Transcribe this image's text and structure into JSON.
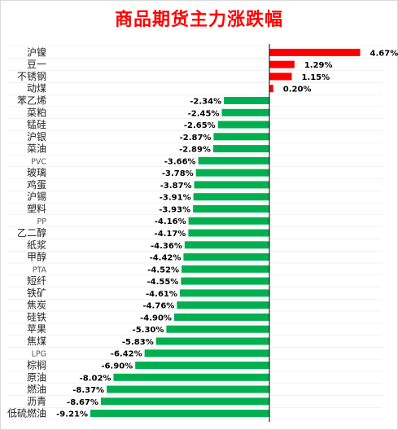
{
  "title": "商品期货主力涨跌幅",
  "colors": {
    "positive": "#ff0000",
    "negative": "#00b050",
    "axis": "#000000",
    "grid": "#e6e6e6"
  },
  "chart_data": {
    "type": "bar",
    "orientation": "horizontal",
    "title": "商品期货主力涨跌幅",
    "xlim": [
      -9.21,
      4.67
    ],
    "grid": false,
    "legend": "none",
    "categories": [
      "沪镍",
      "豆一",
      "不锈钢",
      "动煤",
      "苯乙烯",
      "菜粕",
      "锰硅",
      "沪银",
      "菜油",
      "PVC",
      "玻璃",
      "鸡蛋",
      "沪锡",
      "塑料",
      "PP",
      "乙二醇",
      "纸浆",
      "甲醇",
      "PTA",
      "短纤",
      "铁矿",
      "焦炭",
      "硅铁",
      "苹果",
      "焦煤",
      "LPG",
      "棕榈",
      "原油",
      "燃油",
      "沥青",
      "低硫燃油"
    ],
    "values": [
      4.67,
      1.29,
      1.15,
      0.2,
      -2.34,
      -2.45,
      -2.65,
      -2.87,
      -2.89,
      -3.66,
      -3.78,
      -3.87,
      -3.91,
      -3.93,
      -4.16,
      -4.17,
      -4.36,
      -4.42,
      -4.52,
      -4.55,
      -4.61,
      -4.76,
      -4.9,
      -5.3,
      -5.83,
      -6.42,
      -6.9,
      -8.02,
      -8.37,
      -8.67,
      -9.21
    ],
    "labels": [
      "4.67%",
      "1.29%",
      "1.15%",
      "0.20%",
      "-2.34%",
      "-2.45%",
      "-2.65%",
      "-2.87%",
      "-2.89%",
      "-3.66%",
      "-3.78%",
      "-3.87%",
      "-3.91%",
      "-3.93%",
      "-4.16%",
      "-4.17%",
      "-4.36%",
      "-4.42%",
      "-4.52%",
      "-4.55%",
      "-4.61%",
      "-4.76%",
      "-4.90%",
      "-5.30%",
      "-5.83%",
      "-6.42%",
      "-6.90%",
      "-8.02%",
      "-8.37%",
      "-8.67%",
      "-9.21%"
    ]
  }
}
